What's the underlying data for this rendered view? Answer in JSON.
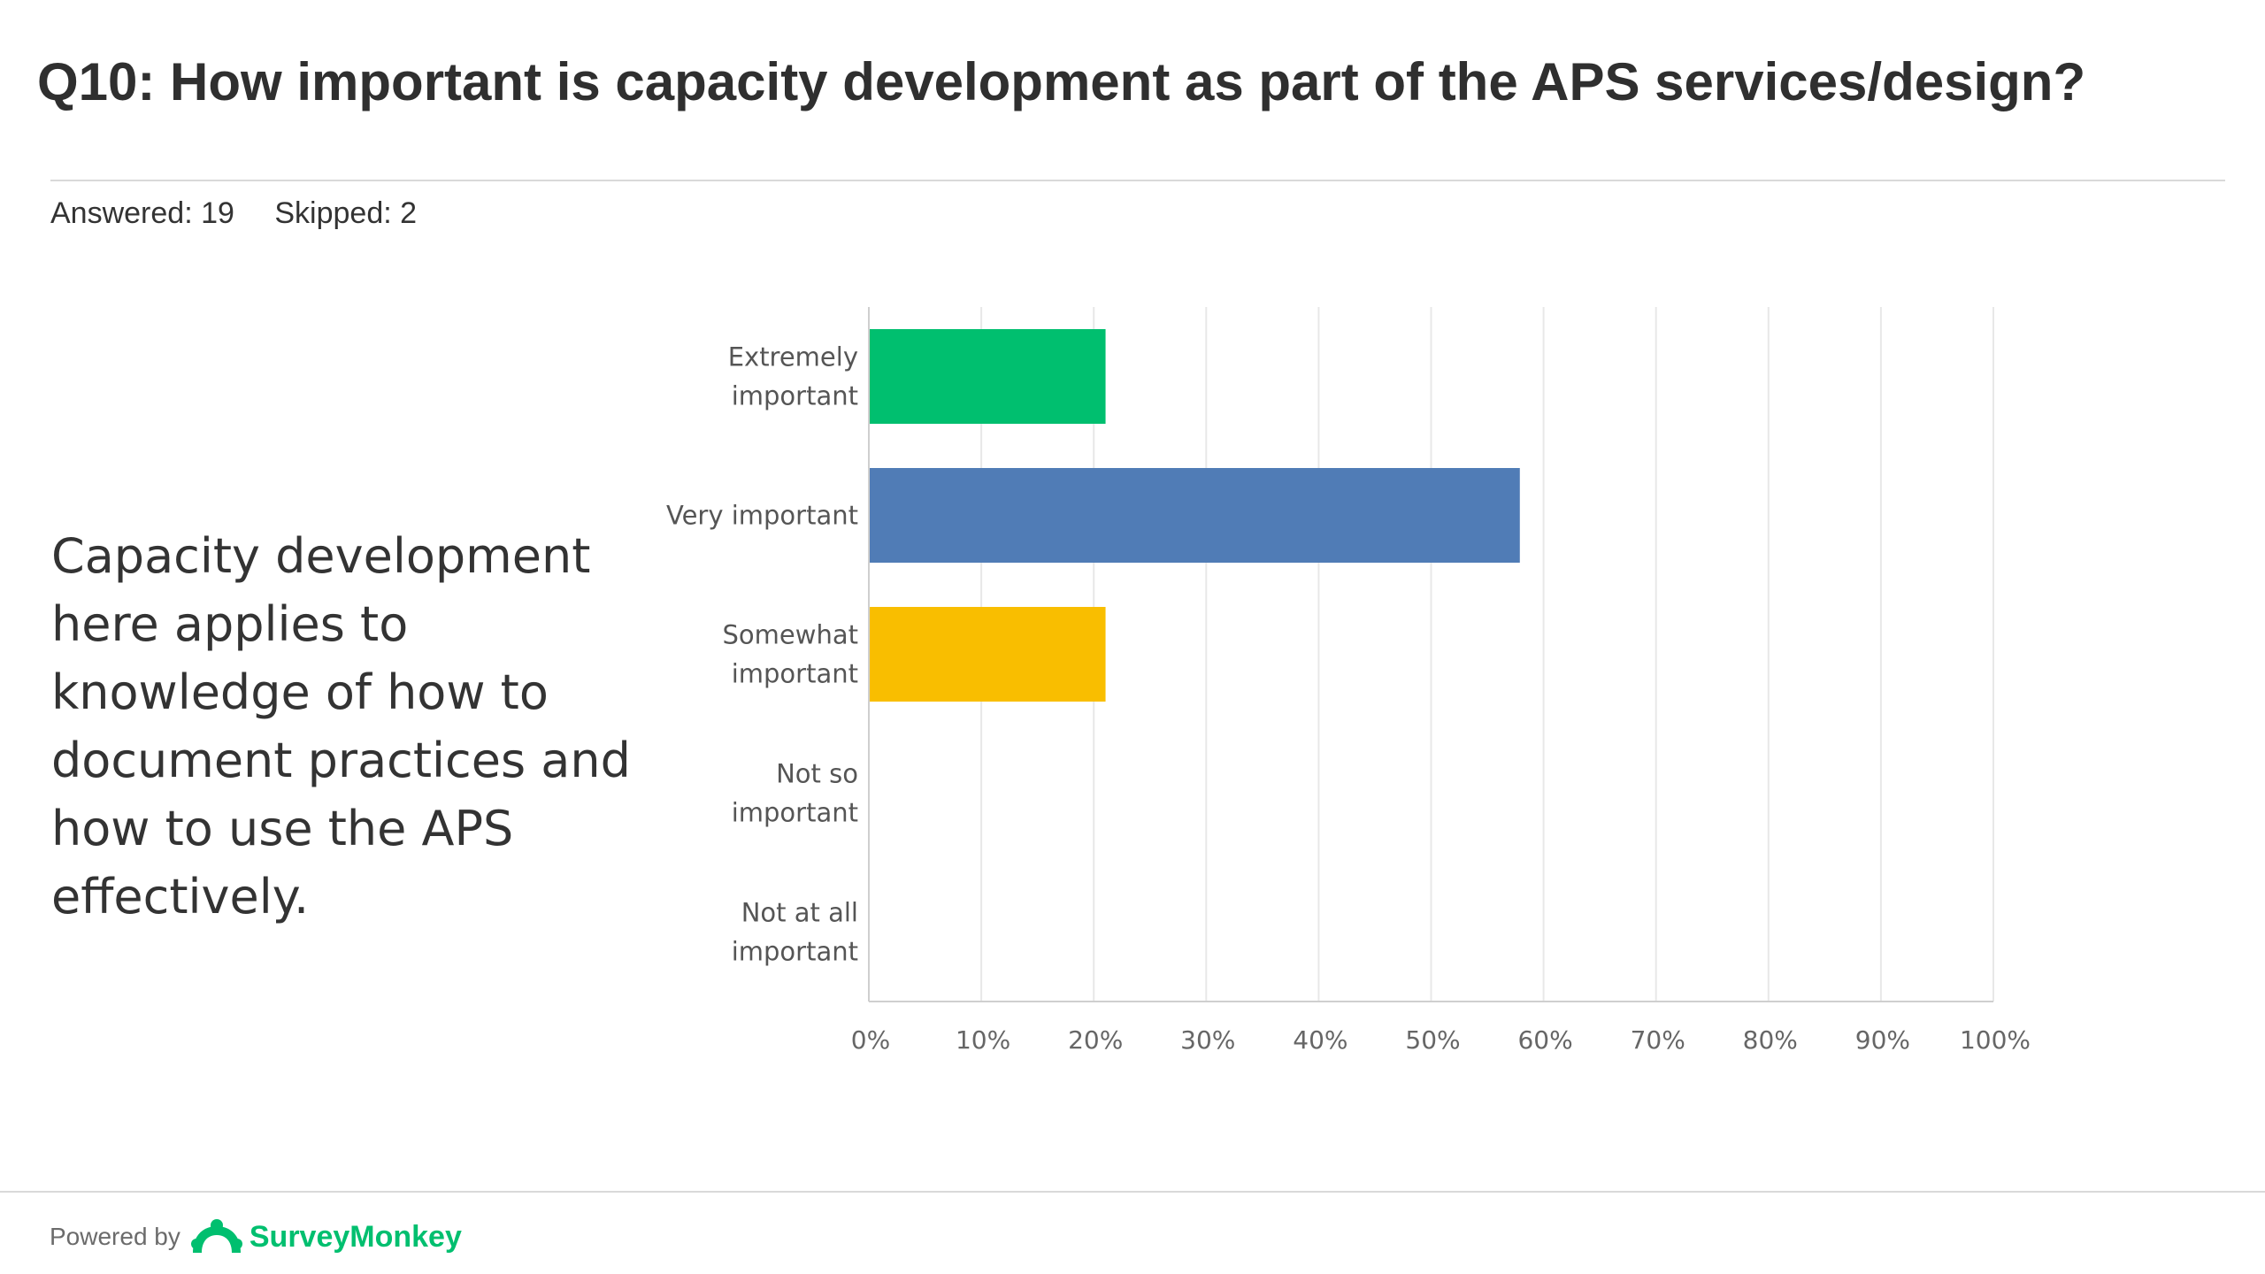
{
  "header": {
    "title": "Q10: How important is capacity development as part of the APS services/design?",
    "answered": "Answered: 19",
    "skipped": "Skipped: 2"
  },
  "note": "Capacity development here applies to knowledge of how to document  practices and how to use the APS effectively.",
  "chart_data": {
    "type": "bar",
    "orientation": "horizontal",
    "categories": [
      [
        "Extremely",
        "important"
      ],
      [
        "Very important"
      ],
      [
        "Somewhat",
        "important"
      ],
      [
        "Not so",
        "important"
      ],
      [
        "Not at all",
        "important"
      ]
    ],
    "values": [
      21.05,
      57.89,
      21.05,
      0,
      0
    ],
    "colors": [
      "#00bf6f",
      "#507cb6",
      "#f9be00",
      "#6bc8cd",
      "#ff8b4f"
    ],
    "xlim": [
      0,
      100
    ],
    "xticks": [
      "0%",
      "10%",
      "20%",
      "30%",
      "40%",
      "50%",
      "60%",
      "70%",
      "80%",
      "90%",
      "100%"
    ],
    "grid": true
  },
  "footer": {
    "powered_by": "Powered by",
    "brand": "SurveyMonkey",
    "logo_icon": "surveymonkey-logo-icon"
  }
}
